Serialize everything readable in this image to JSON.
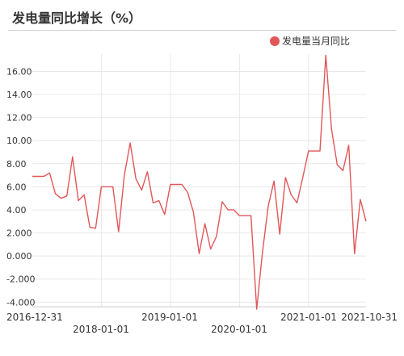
{
  "page": {
    "title": "发电量同比增长（%）"
  },
  "colors": {
    "series": "#e15759",
    "grid": "#e8e8e8",
    "axis": "#333333"
  },
  "chart_data": {
    "type": "line",
    "title": "发电量同比增长（%）",
    "legend": {
      "position": "top-right",
      "entries": [
        "发电量当月同比"
      ]
    },
    "grid": true,
    "ylim": [
      -4.4,
      17.5
    ],
    "yticks": [
      16,
      14,
      12,
      10,
      8,
      6,
      4,
      2,
      0,
      -2,
      -4
    ],
    "ytick_labels": [
      "16.00",
      "14.00",
      "12.00",
      "10.00",
      "8.00",
      "6.00",
      "4.00",
      "2.000",
      "0.000",
      "-2.000",
      "-4.000"
    ],
    "xticks_row1": [
      "2016-12-31",
      "2019-01-01",
      "2021-01-01",
      "2021-10-31"
    ],
    "xticks_row2": [
      "2018-01-01",
      "2020-01-01"
    ],
    "x": [
      "2016-12-31",
      "2017-01-31",
      "2017-02-28",
      "2017-03-31",
      "2017-04-30",
      "2017-05-31",
      "2017-06-30",
      "2017-07-31",
      "2017-08-31",
      "2017-09-30",
      "2017-10-31",
      "2017-11-30",
      "2017-12-31",
      "2018-01-31",
      "2018-02-28",
      "2018-03-31",
      "2018-04-30",
      "2018-05-31",
      "2018-06-30",
      "2018-07-31",
      "2018-08-31",
      "2018-09-30",
      "2018-10-31",
      "2018-11-30",
      "2018-12-31",
      "2019-01-31",
      "2019-02-28",
      "2019-03-31",
      "2019-04-30",
      "2019-05-31",
      "2019-06-30",
      "2019-07-31",
      "2019-08-31",
      "2019-09-30",
      "2019-10-31",
      "2019-11-30",
      "2019-12-31",
      "2020-01-31",
      "2020-02-29",
      "2020-03-31",
      "2020-04-30",
      "2020-05-31",
      "2020-06-30",
      "2020-07-31",
      "2020-08-31",
      "2020-09-30",
      "2020-10-31",
      "2020-11-30",
      "2020-12-31",
      "2021-01-31",
      "2021-02-28",
      "2021-03-31",
      "2021-04-30",
      "2021-05-31",
      "2021-06-30",
      "2021-07-31",
      "2021-08-31",
      "2021-09-30",
      "2021-10-31"
    ],
    "series": [
      {
        "name": "发电量当月同比",
        "values": [
          6.9,
          6.9,
          6.9,
          7.2,
          5.4,
          5.0,
          5.2,
          8.6,
          4.8,
          5.3,
          2.5,
          2.4,
          6.0,
          6.0,
          6.0,
          2.1,
          7.0,
          9.8,
          6.7,
          5.7,
          7.3,
          4.6,
          4.8,
          3.6,
          6.2,
          6.2,
          6.2,
          5.5,
          3.8,
          0.2,
          2.8,
          0.6,
          1.7,
          4.7,
          4.0,
          4.0,
          3.5,
          3.5,
          3.5,
          -4.6,
          0.3,
          4.3,
          6.5,
          1.9,
          6.8,
          5.3,
          4.6,
          6.8,
          9.1,
          9.1,
          9.1,
          17.4,
          11.0,
          7.9,
          7.4,
          9.6,
          0.2,
          4.9,
          3.0
        ]
      }
    ]
  }
}
